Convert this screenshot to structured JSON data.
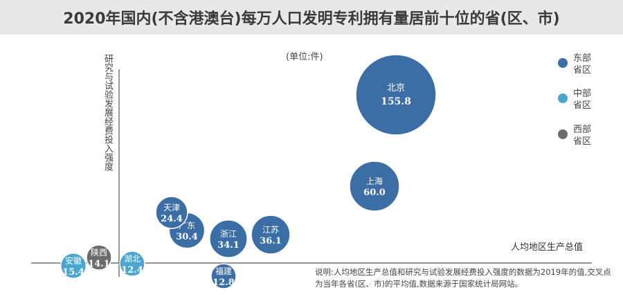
{
  "title": "2020年国内(不含港澳台)每万人口发明专利拥有量居前十位的省(区、市)",
  "unit": "(单位:件)",
  "note": "说明:人均地区生产总值和研究与试验发展经费投入强度的数据为2019年的值,交叉点为当年各省(区、市)的平均值,数据来源于国家统计局网站。",
  "legend": [
    {
      "line1": "东部",
      "line2": "省区",
      "color": "#3a6ea5"
    },
    {
      "line1": "中部",
      "line2": "省区",
      "color": "#4aa6cf"
    },
    {
      "line1": "西部",
      "line2": "省区",
      "color": "#6b6b6b"
    }
  ],
  "chart_data": {
    "type": "scatter",
    "title": "2020年国内(不含港澳台)每万人口发明专利拥有量居前十位的省(区、市)",
    "xlabel": "人均地区生产总值",
    "ylabel": "研究与试验发展经费投入强度",
    "size_unit": "件",
    "points": [
      {
        "name": "北京",
        "value": 155.8,
        "region": "东部"
      },
      {
        "name": "上海",
        "value": 60.0,
        "region": "东部"
      },
      {
        "name": "江苏",
        "value": 36.1,
        "region": "东部"
      },
      {
        "name": "浙江",
        "value": 34.1,
        "region": "东部"
      },
      {
        "name": "广东",
        "value": 30.4,
        "region": "东部"
      },
      {
        "name": "天津",
        "value": 24.4,
        "region": "东部"
      },
      {
        "name": "福建",
        "value": 12.8,
        "region": "东部"
      },
      {
        "name": "湖北",
        "value": 12.4,
        "region": "中部"
      },
      {
        "name": "安徽",
        "value": 15.4,
        "region": "中部"
      },
      {
        "name": "陕西",
        "value": 14.1,
        "region": "西部"
      }
    ],
    "region_colors": {
      "东部": "#3a6ea5",
      "中部": "#4aa6cf",
      "西部": "#6b6b6b"
    },
    "legend_position": "right"
  }
}
